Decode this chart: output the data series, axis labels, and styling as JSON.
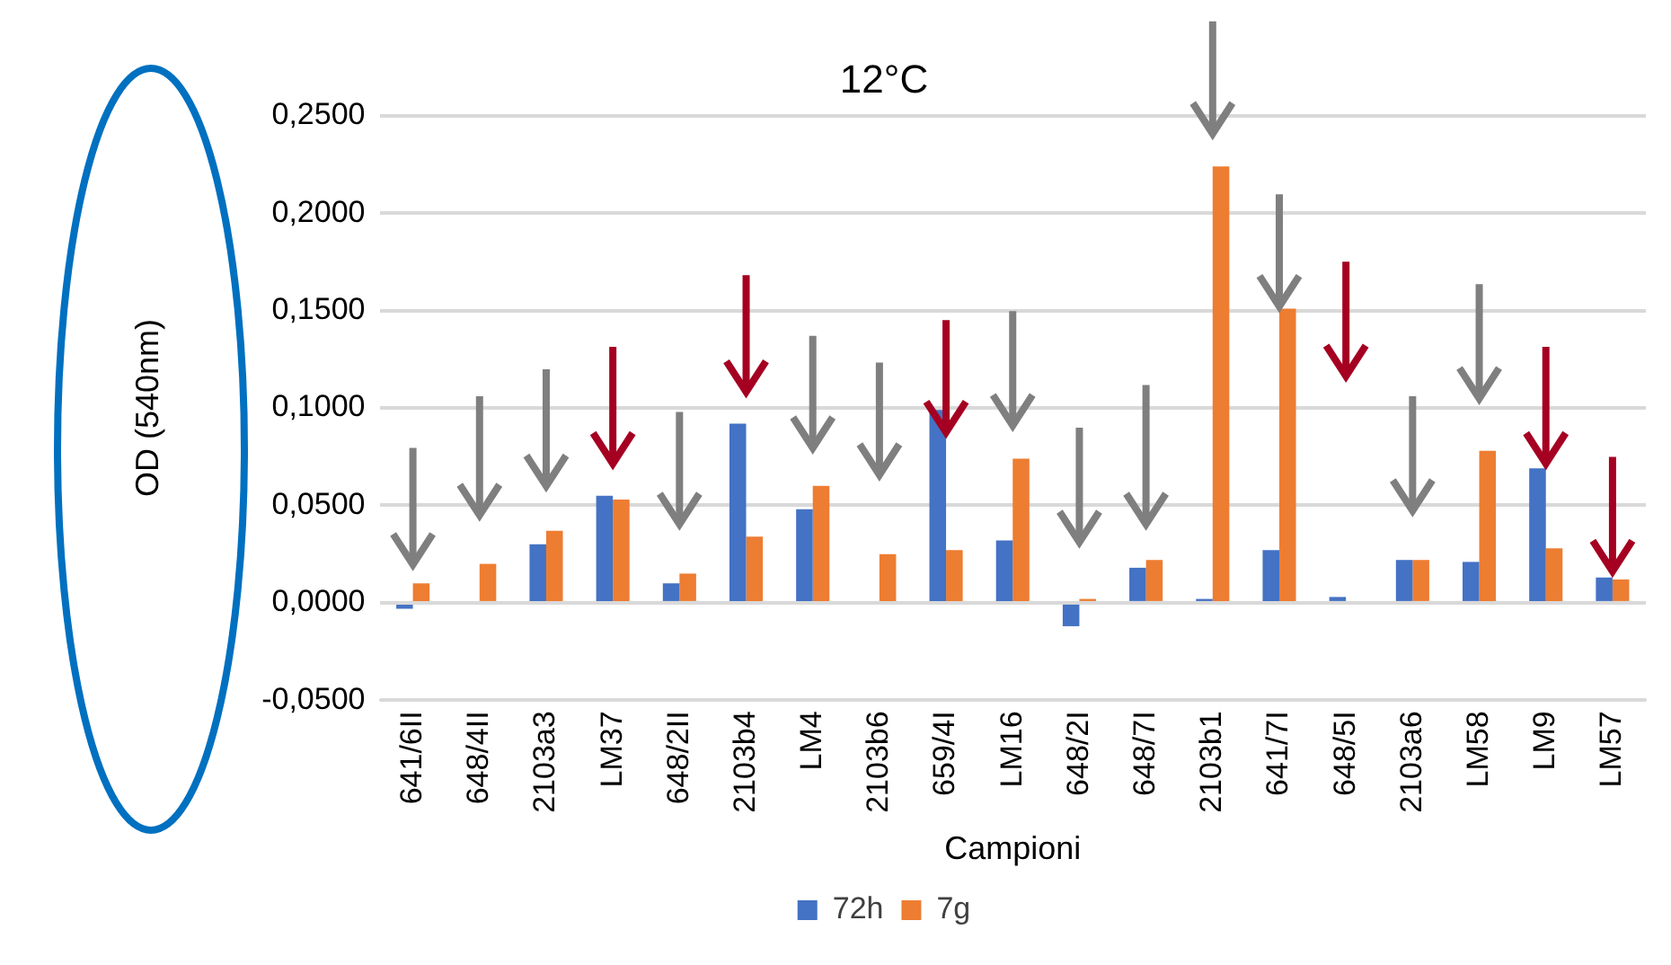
{
  "chart_data": {
    "type": "bar",
    "title": "12°C",
    "xlabel": "Campioni",
    "ylabel": "OD (540nm)",
    "categories": [
      "641/6II",
      "648/4II",
      "2103a3",
      "LM37",
      "648/2II",
      "2103b4",
      "LM4",
      "2103b6",
      "659/4I",
      "LM16",
      "648/2I",
      "648/7I",
      "2103b1",
      "641/7I",
      "648/5I",
      "2103a6",
      "LM58",
      "LM9",
      "LM57"
    ],
    "series": [
      {
        "name": "72h",
        "color": "#4472c4",
        "values": [
          -0.003,
          0,
          0.03,
          0.055,
          0.01,
          0.092,
          0.048,
          null,
          0.099,
          0.032,
          -0.012,
          0.018,
          0.002,
          0.027,
          0.003,
          0.022,
          0.021,
          0.069,
          0.013
        ]
      },
      {
        "name": "7g",
        "color": "#ed7d31",
        "values": [
          0.01,
          0.02,
          0.037,
          0.053,
          0.015,
          0.034,
          0.06,
          0.025,
          0.027,
          0.074,
          0.002,
          0.022,
          0.224,
          0.151,
          0,
          0.022,
          0.078,
          0.028,
          0.012
        ]
      }
    ],
    "ylim": [
      -0.05,
      0.25
    ],
    "yticks": [
      {
        "value": -0.05,
        "label": "-0,0500"
      },
      {
        "value": 0,
        "label": "0,0000"
      },
      {
        "value": 0.05,
        "label": "0,0500"
      },
      {
        "value": 0.1,
        "label": "0,1000"
      },
      {
        "value": 0.15,
        "label": "0,1500"
      },
      {
        "value": 0.2,
        "label": "0,2000"
      },
      {
        "value": 0.25,
        "label": "0,2500"
      }
    ],
    "grid": "y",
    "legend": "bottom"
  }
}
